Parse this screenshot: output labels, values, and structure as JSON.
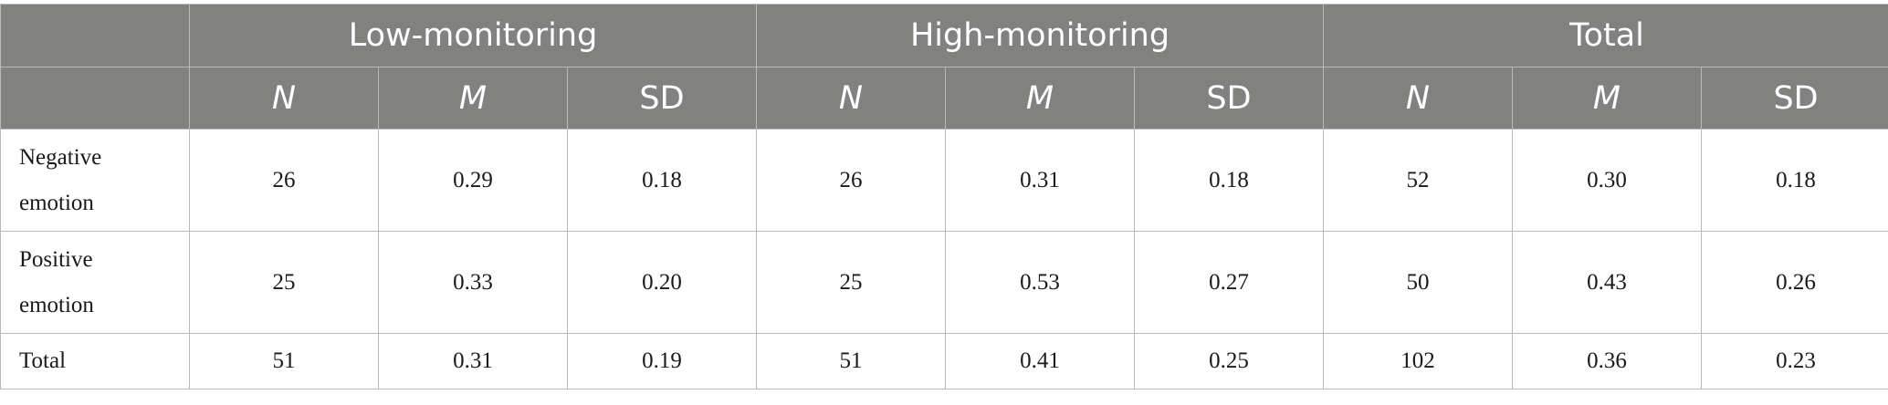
{
  "table": {
    "groups": [
      "Low-monitoring",
      "High-monitoring",
      "Total"
    ],
    "stats": [
      "N",
      "M",
      "SD"
    ],
    "rows": [
      {
        "label": "Negative emotion",
        "cells": [
          "26",
          "0.29",
          "0.18",
          "26",
          "0.31",
          "0.18",
          "52",
          "0.30",
          "0.18"
        ]
      },
      {
        "label": "Positive emotion",
        "cells": [
          "25",
          "0.33",
          "0.20",
          "25",
          "0.53",
          "0.27",
          "50",
          "0.43",
          "0.26"
        ]
      },
      {
        "label": "Total",
        "cells": [
          "51",
          "0.31",
          "0.19",
          "51",
          "0.41",
          "0.25",
          "102",
          "0.36",
          "0.23"
        ]
      }
    ]
  },
  "colors": {
    "header_background": "#818180",
    "header_text": "#ffffff",
    "border": "#b9b9b9"
  }
}
